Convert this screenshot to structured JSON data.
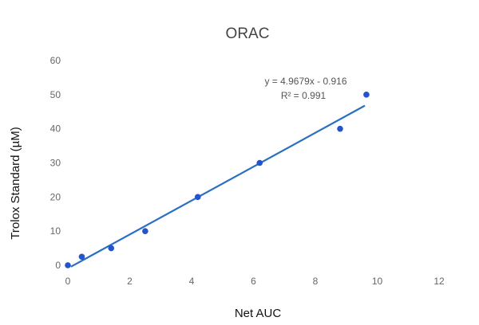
{
  "chart_data": {
    "type": "scatter",
    "title": "ORAC",
    "xlabel": "Net AUC",
    "ylabel": "Trolox Standard (µM)",
    "xlim": [
      0,
      12
    ],
    "ylim": [
      0,
      60
    ],
    "x_ticks": [
      "0",
      "2",
      "4",
      "6",
      "8",
      "10",
      "12"
    ],
    "y_ticks": [
      "0",
      "10",
      "20",
      "30",
      "40",
      "50",
      "60"
    ],
    "grid": false,
    "legend": "none",
    "points": [
      {
        "x": 0.0,
        "y": 0
      },
      {
        "x": 0.45,
        "y": 2.5
      },
      {
        "x": 1.4,
        "y": 5
      },
      {
        "x": 2.5,
        "y": 10
      },
      {
        "x": 4.2,
        "y": 20
      },
      {
        "x": 6.2,
        "y": 30
      },
      {
        "x": 8.8,
        "y": 40
      },
      {
        "x": 9.65,
        "y": 50
      }
    ],
    "trendline": {
      "slope": 4.9679,
      "intercept": -0.916,
      "x_range": [
        0.1,
        9.6
      ],
      "equation_label": "y = 4.9679x - 0.916",
      "r2_label": "R² = 0.991"
    },
    "colors": {
      "points": "#2255cc",
      "trendline": "#2a6fc2",
      "ticks": "#666666"
    }
  }
}
